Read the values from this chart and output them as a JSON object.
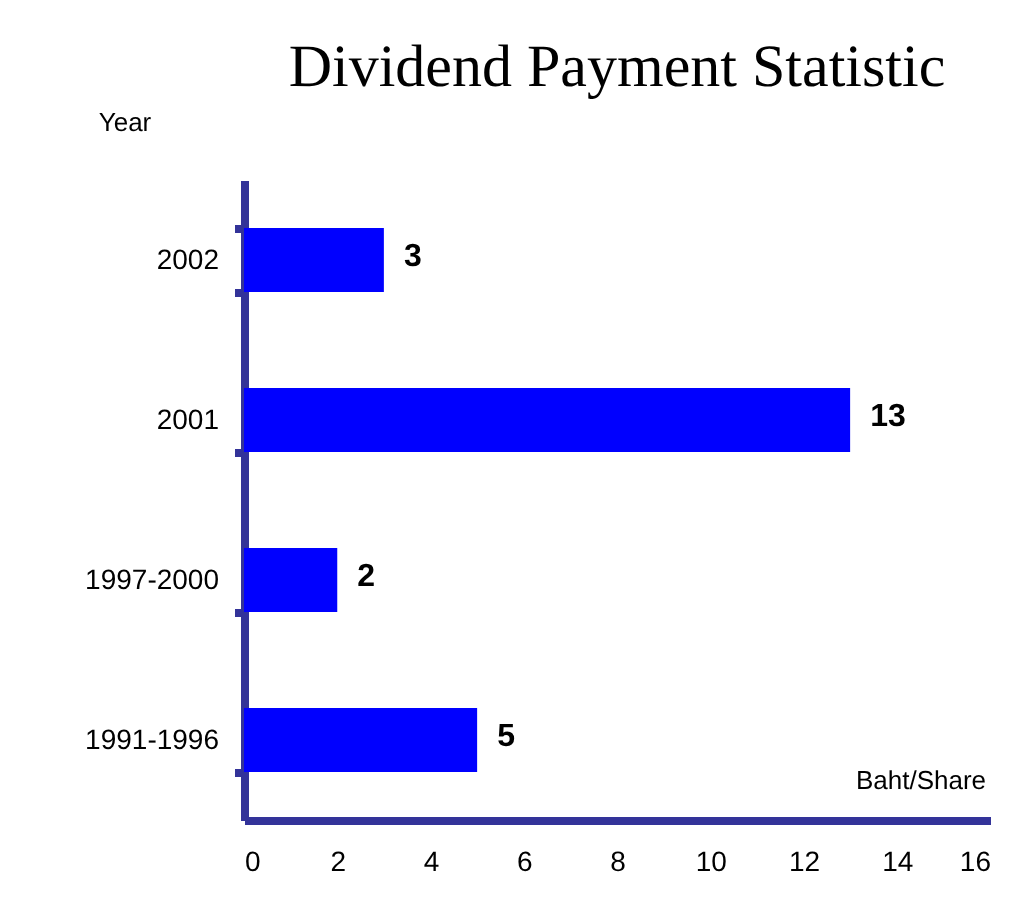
{
  "chart_data": {
    "type": "bar",
    "orientation": "horizontal",
    "title": "Dividend Payment Statistic",
    "ylabel": "Year",
    "xlabel": "Baht/Share",
    "categories": [
      "2002",
      "2001",
      "1997-2000",
      "1991-1996"
    ],
    "values": [
      3,
      13,
      2,
      5
    ],
    "color": "#0000ff",
    "xlim": [
      0,
      16
    ],
    "xticks": [
      0,
      2,
      4,
      6,
      8,
      10,
      12,
      14,
      16
    ],
    "data_labels": true,
    "grid": false
  }
}
